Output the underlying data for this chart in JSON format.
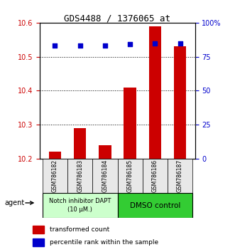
{
  "title": "GDS4488 / 1376065_at",
  "samples": [
    "GSM786182",
    "GSM786183",
    "GSM786184",
    "GSM786185",
    "GSM786186",
    "GSM786187"
  ],
  "red_values": [
    10.22,
    10.29,
    10.24,
    10.41,
    10.59,
    10.53
  ],
  "blue_values_pct": [
    83,
    83,
    83,
    84,
    85,
    85
  ],
  "ylim_left": [
    10.2,
    10.6
  ],
  "ylim_right": [
    0,
    100
  ],
  "yticks_left": [
    10.2,
    10.3,
    10.4,
    10.5,
    10.6
  ],
  "yticks_right": [
    0,
    25,
    50,
    75,
    100
  ],
  "ytick_labels_right": [
    "0",
    "25",
    "50",
    "75",
    "100%"
  ],
  "bar_color": "#cc0000",
  "dot_color": "#0000cc",
  "bar_bottom": 10.2,
  "group1_label": "Notch inhibitor DAPT\n(10 μM.)",
  "group2_label": "DMSO control",
  "group1_color": "#ccffcc",
  "group2_color": "#33cc33",
  "group1_indices": [
    0,
    1,
    2
  ],
  "group2_indices": [
    3,
    4,
    5
  ],
  "legend_red": "transformed count",
  "legend_blue": "percentile rank within the sample",
  "agent_label": "agent",
  "bg_color": "#e8e8e8",
  "plot_bg": "#ffffff",
  "title_color": "#000000",
  "left_tick_color": "#cc0000",
  "right_tick_color": "#0000cc"
}
